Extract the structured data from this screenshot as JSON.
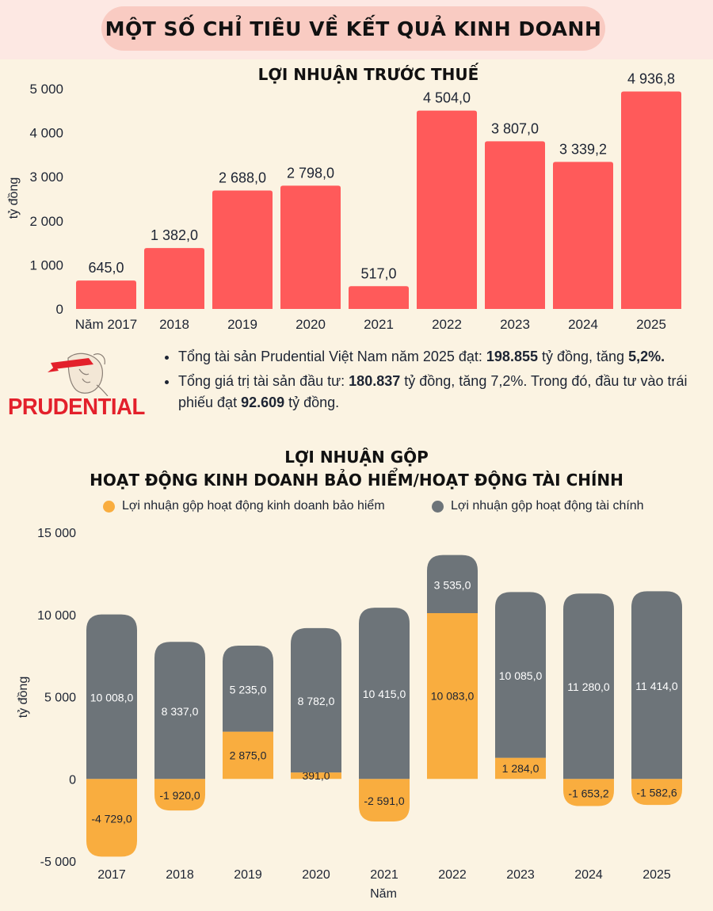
{
  "header": {
    "title": "MỘT SỐ CHỈ TIÊU VỀ KẾT QUẢ KINH DOANH"
  },
  "chart_data": [
    {
      "type": "bar",
      "title": "LỢI NHUẬN TRƯỚC THUẾ",
      "categories": [
        "Năm 2017",
        "2018",
        "2019",
        "2020",
        "2021",
        "2022",
        "2023",
        "2024",
        "2025"
      ],
      "values": [
        645.0,
        1382.0,
        2688.0,
        2798.0,
        517.0,
        4504.0,
        3807.0,
        3339.2,
        4936.8
      ],
      "labels": [
        "645,0",
        "1 382,0",
        "2 688,0",
        "2 798,0",
        "517,0",
        "4 504,0",
        "3 807,0",
        "3 339,2",
        "4 936,8"
      ],
      "ylabel": "tỷ đồng",
      "xlabel": "",
      "ylim": [
        0,
        5000
      ],
      "yticks": [
        0,
        1000,
        2000,
        3000,
        4000,
        5000
      ],
      "ytick_labels": [
        "0",
        "1 000",
        "2 000",
        "3 000",
        "4 000",
        "5 000"
      ],
      "color": "#ff5a5a"
    },
    {
      "type": "bar",
      "stacked": true,
      "title": "LỢI NHUẬN GỘP",
      "subtitle": "HOẠT ĐỘNG KINH DOANH BẢO HIỂM/HOẠT ĐỘNG TÀI CHÍNH",
      "categories": [
        "2017",
        "2018",
        "2019",
        "2020",
        "2021",
        "2022",
        "2023",
        "2024",
        "2025"
      ],
      "series": [
        {
          "name": "Lợi nhuận gộp hoạt động kinh doanh bảo hiểm",
          "color": "#f9ad3f",
          "values": [
            -4729.0,
            -1920.0,
            2875.0,
            391.0,
            -2591.0,
            10083.0,
            1284.0,
            -1653.2,
            -1582.6
          ],
          "labels": [
            "-4 729,0",
            "-1 920,0",
            "2 875,0",
            "391,0",
            "-2 591,0",
            "10 083,0",
            "1 284,0",
            "-1 653,2",
            "-1 582,6"
          ]
        },
        {
          "name": "Lợi nhuận gộp hoạt động tài chính",
          "color": "#6d7479",
          "values": [
            10008.0,
            8337.0,
            5235.0,
            8782.0,
            10415.0,
            3535.0,
            10085.0,
            11280.0,
            11414.0
          ],
          "labels": [
            "10 008,0",
            "8 337,0",
            "5 235,0",
            "8 782,0",
            "10 415,0",
            "3 535,0",
            "10 085,0",
            "11 280,0",
            "11 414,0"
          ]
        }
      ],
      "xlabel": "Năm",
      "ylabel": "tỷ đồng",
      "ylim": [
        -5000,
        15000
      ],
      "yticks": [
        -5000,
        0,
        5000,
        10000,
        15000
      ],
      "ytick_labels": [
        "-5 000",
        "0",
        "5 000",
        "10 000",
        "15 000"
      ]
    }
  ],
  "info": {
    "line1_a": " Tổng tài sản Prudential Việt Nam năm 2025 đạt: ",
    "line1_b": "198.855",
    "line1_c": " tỷ đồng, tăng ",
    "line1_d": "5,2%.",
    "line2_a": "Tổng giá trị tài sản đầu tư: ",
    "line2_b": "180.837",
    "line2_c": " tỷ đồng, tăng 7,2%. Trong đó, đầu tư vào trái phiếu đạt ",
    "line2_d": "92.609",
    "line2_e": " tỷ đồng."
  },
  "logo": {
    "text": "PRUDENTIAL",
    "icon": "prudential-logo-icon"
  }
}
